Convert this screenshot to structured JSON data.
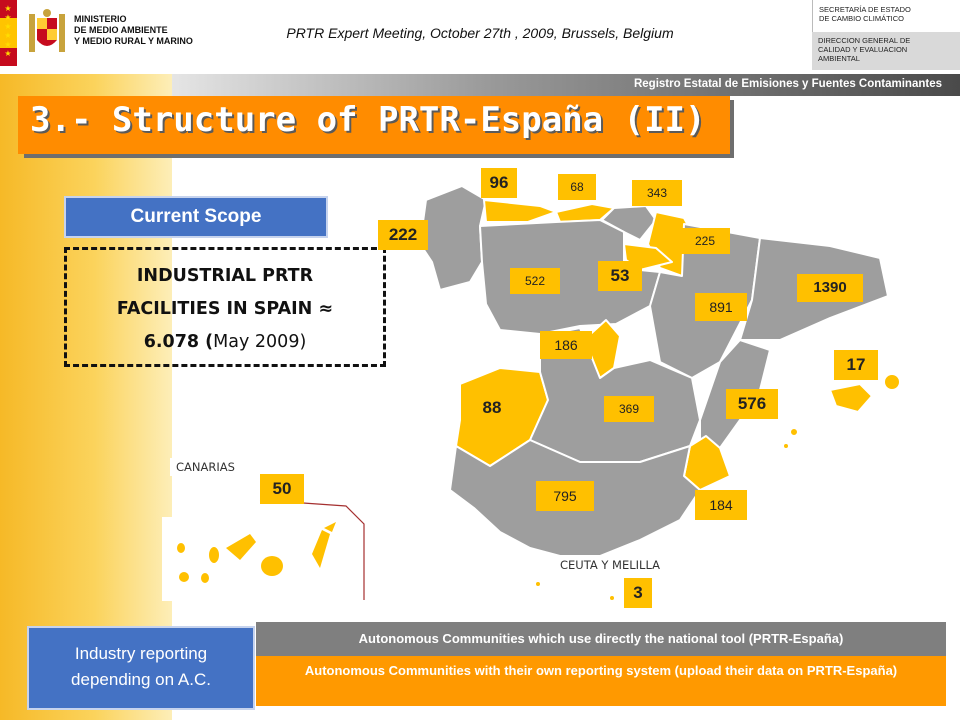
{
  "header": {
    "ministry_lines": [
      "MINISTERIO",
      "DE MEDIO AMBIENTE",
      "Y MEDIO RURAL Y MARINO"
    ],
    "meeting": "PRTR Expert Meeting, October 27th , 2009, Brussels, Belgium",
    "secretaria": [
      "SECRETARÍA DE ESTADO",
      "DE CAMBIO CLIMÁTICO"
    ],
    "direccion": [
      "DIRECCION GENERAL DE",
      "CALIDAD Y EVALUACION",
      "AMBIENTAL"
    ],
    "registry": "Registro Estatal de Emisiones y Fuentes Contaminantes"
  },
  "title": "3.- Structure of PRTR-España (II)",
  "scope_label": "Current Scope",
  "facilities": {
    "line1": "INDUSTRIAL PRTR",
    "line2": "FACILITIES IN SPAIN ≈",
    "line3_bold": "6.078 (",
    "line3_rest": "May 2009)"
  },
  "map": {
    "numbers": {
      "galicia": "222",
      "asturias": "96",
      "cantabria": "68",
      "pais_vasco": "343",
      "navarra": "225",
      "la_rioja": "53",
      "castilla_leon": "522",
      "aragon": "891",
      "cataluna": "1390",
      "madrid": "186",
      "baleares": "17",
      "extremadura": "88",
      "castilla_la_mancha": "369",
      "valencia": "576",
      "murcia": "184",
      "andalucia": "795",
      "canarias": "50",
      "ceuta_melilla": "3"
    },
    "canarias_label": "CANARIAS",
    "ceuta_label": "CEUTA Y MELILLA",
    "colors": {
      "national_tool": "#9e9e9e",
      "own_system": "#ffc000"
    }
  },
  "legend": {
    "left": [
      "Industry reporting",
      "depending on A.C."
    ],
    "gray": "Autonomous Communities which use directly the national tool (PRTR-España)",
    "orange": "Autonomous Communities with their own reporting system (upload their data on PRTR-España)"
  }
}
